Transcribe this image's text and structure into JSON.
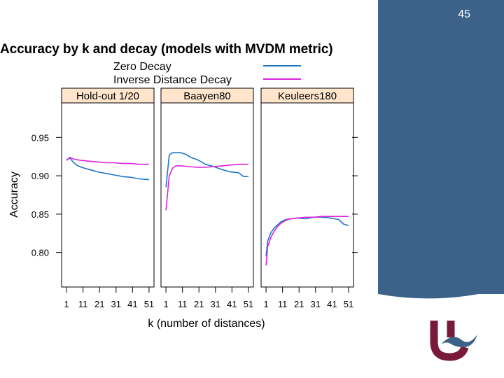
{
  "slide": {
    "page_number": "45",
    "colors": {
      "panel": "#3d6289",
      "logo_maroon": "#7a1a3a",
      "logo_blue": "#3d6289"
    }
  },
  "chart_data": {
    "type": "line",
    "title": "Accuracy by k and decay (models with MVDM metric)",
    "xlabel": "k (number of distances)",
    "ylabel": "Accuracy",
    "x_ticks": [
      1,
      11,
      21,
      31,
      41,
      51
    ],
    "y_ticks": [
      "0.80",
      "0.85",
      "0.90",
      "0.95"
    ],
    "xlim": [
      -2,
      54
    ],
    "ylim": [
      0.755,
      0.995
    ],
    "legend": {
      "placement": "top",
      "entries": [
        {
          "name": "Zero Decay",
          "color": "#1f77c4"
        },
        {
          "name": "Inverse Distance Decay",
          "color": "#dd22dd"
        }
      ]
    },
    "panels": [
      {
        "name": "Hold-out 1/20",
        "series": [
          {
            "name": "Zero Decay",
            "x": [
              1,
              3,
              5,
              7,
              10,
              15,
              20,
              25,
              30,
              35,
              40,
              45,
              51
            ],
            "y": [
              0.921,
              0.923,
              0.918,
              0.914,
              0.911,
              0.908,
              0.905,
              0.903,
              0.901,
              0.899,
              0.898,
              0.896,
              0.895
            ]
          },
          {
            "name": "Inverse Distance Decay",
            "x": [
              1,
              3,
              5,
              7,
              10,
              15,
              20,
              25,
              30,
              35,
              40,
              45,
              51
            ],
            "y": [
              0.92,
              0.924,
              0.922,
              0.921,
              0.92,
              0.919,
              0.918,
              0.917,
              0.917,
              0.916,
              0.916,
              0.915,
              0.915
            ]
          }
        ]
      },
      {
        "name": "Baayen80",
        "series": [
          {
            "name": "Zero Decay",
            "x": [
              1,
              3,
              5,
              7,
              10,
              13,
              16,
              20,
              25,
              30,
              35,
              40,
              45,
              48,
              51
            ],
            "y": [
              0.885,
              0.927,
              0.93,
              0.93,
              0.93,
              0.928,
              0.924,
              0.921,
              0.915,
              0.912,
              0.908,
              0.905,
              0.904,
              0.899,
              0.899
            ]
          },
          {
            "name": "Inverse Distance Decay",
            "x": [
              1,
              3,
              5,
              7,
              10,
              15,
              20,
              25,
              30,
              35,
              40,
              45,
              51
            ],
            "y": [
              0.855,
              0.9,
              0.91,
              0.913,
              0.913,
              0.912,
              0.911,
              0.911,
              0.912,
              0.913,
              0.914,
              0.915,
              0.915
            ]
          }
        ]
      },
      {
        "name": "Keuleers180",
        "series": [
          {
            "name": "Zero Decay",
            "x": [
              1,
              2,
              4,
              6,
              8,
              10,
              13,
              16,
              20,
              25,
              30,
              35,
              40,
              45,
              48,
              51
            ],
            "y": [
              0.795,
              0.815,
              0.826,
              0.832,
              0.836,
              0.84,
              0.843,
              0.844,
              0.845,
              0.844,
              0.846,
              0.846,
              0.845,
              0.843,
              0.837,
              0.835
            ]
          },
          {
            "name": "Inverse Distance Decay",
            "x": [
              1,
              2,
              4,
              6,
              8,
              10,
              13,
              16,
              20,
              25,
              30,
              35,
              40,
              45,
              51
            ],
            "y": [
              0.783,
              0.808,
              0.82,
              0.828,
              0.834,
              0.838,
              0.842,
              0.844,
              0.845,
              0.846,
              0.846,
              0.847,
              0.847,
              0.847,
              0.847
            ]
          }
        ]
      }
    ]
  }
}
